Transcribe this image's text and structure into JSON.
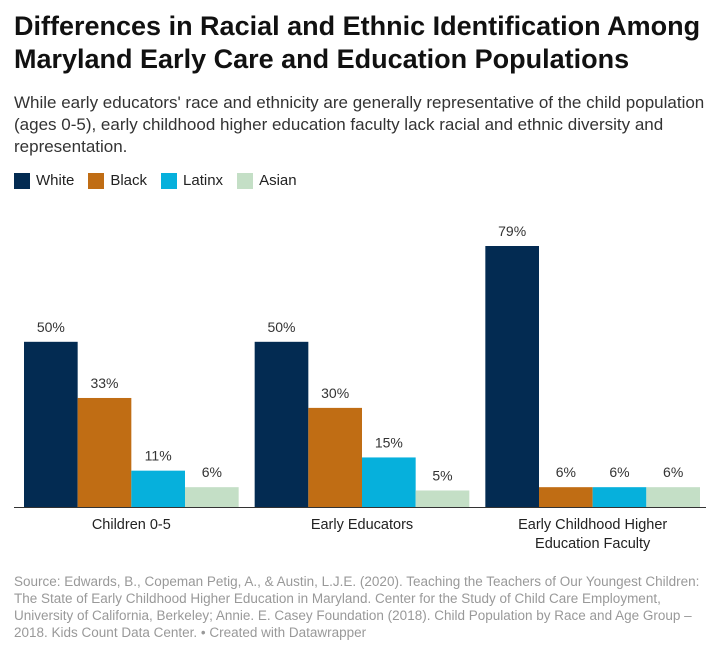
{
  "header": {
    "title": "Differences in Racial and Ethnic Identification Among Maryland Early Care and Education Populations",
    "subtitle": "While early educators' race and ethnicity are generally representative of the child population (ages 0-5), early childhood higher education faculty lack racial and ethnic diversity and representation."
  },
  "footer": {
    "source": "Source: Edwards, B., Copeman Petig, A., & Austin, L.J.E. (2020). Teaching the Teachers of Our Youngest Children: The State of Early Childhood Higher Education in Maryland. Center for the Study of Child Care Employment, University of California, Berkeley; Annie. E. Casey Foundation (2018). Child Population by Race and Age Group – 2018. Kids Count Data Center. • Created with Datawrapper"
  },
  "chart_data": {
    "type": "bar",
    "title": "Differences in Racial and Ethnic Identification Among Maryland Early Care and Education Populations",
    "categories": [
      [
        "Children 0-5"
      ],
      [
        "Early Educators"
      ],
      [
        "Early Childhood Higher",
        "Education Faculty"
      ]
    ],
    "series": [
      {
        "name": "White",
        "color": "#032b52",
        "values": [
          50,
          50,
          79
        ]
      },
      {
        "name": "Black",
        "color": "#c06d14",
        "values": [
          33,
          30,
          6
        ]
      },
      {
        "name": "Latinx",
        "color": "#06b0dc",
        "values": [
          11,
          15,
          6
        ]
      },
      {
        "name": "Asian",
        "color": "#c4dfc6",
        "values": [
          6,
          5,
          6
        ]
      }
    ],
    "value_suffix": "%",
    "ylim": [
      0,
      79
    ],
    "legend_position": "top-left",
    "grid": false
  }
}
